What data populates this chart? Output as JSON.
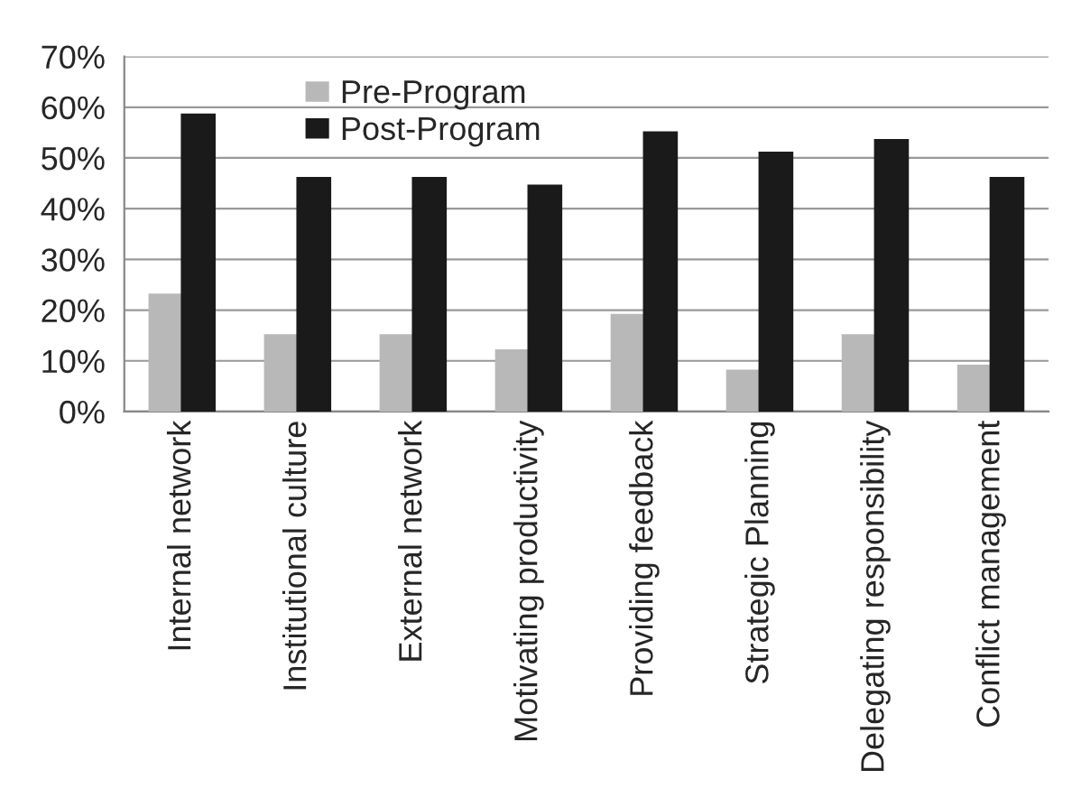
{
  "chart_data": {
    "type": "bar",
    "categories": [
      "Internal network",
      "Institutional culture",
      "External network",
      "Motivating productivity",
      "Providing feedback",
      "Strategic Planning",
      "Delegating responsibility",
      "Conflict management"
    ],
    "series": [
      {
        "name": "Pre-Program",
        "color": "#b8b8b8",
        "values": [
          23,
          15,
          15,
          12,
          19,
          8,
          15,
          9
        ]
      },
      {
        "name": "Post-Program",
        "color": "#1a1a1a",
        "values": [
          58.5,
          46,
          46,
          44.5,
          55,
          51,
          53.5,
          46
        ]
      }
    ],
    "ylim": [
      0,
      70
    ],
    "yticks": [
      {
        "value": 0,
        "label": "0%"
      },
      {
        "value": 10,
        "label": "10%"
      },
      {
        "value": 20,
        "label": "20%"
      },
      {
        "value": 30,
        "label": "30%"
      },
      {
        "value": 40,
        "label": "40%"
      },
      {
        "value": 50,
        "label": "50%"
      },
      {
        "value": 60,
        "label": "60%"
      },
      {
        "value": 70,
        "label": "70%"
      }
    ],
    "grid": "y",
    "legend": "top left"
  }
}
